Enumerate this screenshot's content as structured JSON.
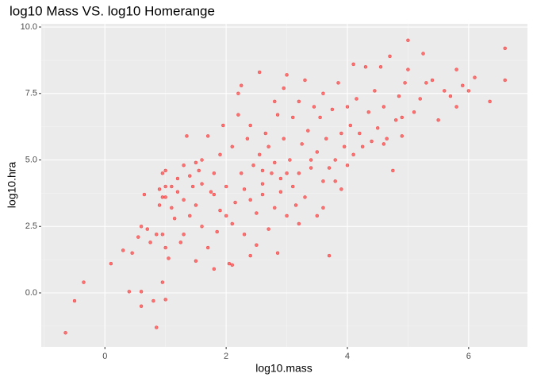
{
  "chart_data": {
    "type": "scatter",
    "title": "log10 Mass VS. log10 Homerange",
    "x_label": "log10.mass",
    "y_label": "log10.hra",
    "color": "#ff0000",
    "grid": true,
    "xlim": [
      -1.05,
      6.97
    ],
    "ylim": [
      -2.03,
      10.12
    ],
    "xticks": [
      0,
      2,
      4,
      6
    ],
    "yticks": [
      {
        "value": 0,
        "label": "0.0"
      },
      {
        "value": 2.5,
        "label": "2.5"
      },
      {
        "value": 5,
        "label": "5.0"
      },
      {
        "value": 7.5,
        "label": "7.5"
      },
      {
        "value": 10,
        "label": "10.0"
      }
    ],
    "x": [
      -0.65,
      -0.5,
      -0.35,
      0.1,
      0.4,
      0.6,
      0.6,
      0.8,
      0.85,
      0.95,
      1.0,
      0.3,
      0.45,
      0.55,
      0.6,
      0.7,
      0.65,
      0.75,
      0.85,
      0.95,
      1.0,
      1.05,
      0.9,
      0.9,
      0.95,
      1.0,
      1.0,
      1.1,
      1.1,
      1.15,
      1.2,
      1.25,
      1.3,
      1.3,
      1.35,
      1.4,
      1.45,
      1.5,
      1.5,
      1.55,
      1.6,
      1.6,
      1.7,
      1.7,
      1.75,
      1.8,
      1.8,
      1.85,
      1.9,
      1.9,
      1.95,
      2.0,
      2.0,
      2.05,
      2.1,
      2.1,
      2.15,
      2.2,
      2.2,
      2.25,
      2.25,
      2.3,
      2.35,
      2.4,
      2.4,
      2.45,
      2.5,
      2.5,
      2.55,
      2.55,
      2.6,
      2.6,
      2.65,
      2.7,
      2.7,
      2.75,
      2.8,
      2.8,
      2.85,
      2.85,
      2.9,
      2.95,
      2.95,
      3.0,
      3.0,
      3.05,
      3.1,
      3.1,
      3.15,
      3.2,
      3.2,
      3.25,
      3.3,
      3.3,
      3.35,
      3.4,
      3.45,
      3.5,
      3.5,
      3.55,
      3.6,
      3.6,
      3.65,
      3.7,
      3.7,
      3.75,
      3.8,
      3.8,
      3.85,
      3.9,
      3.9,
      3.95,
      4.0,
      4.0,
      4.05,
      4.1,
      4.1,
      4.15,
      4.2,
      4.25,
      4.3,
      4.35,
      4.4,
      4.45,
      4.5,
      4.55,
      4.6,
      4.65,
      4.7,
      4.75,
      4.8,
      4.85,
      4.9,
      4.95,
      5.0,
      5.0,
      5.1,
      5.2,
      5.25,
      5.3,
      5.4,
      5.5,
      5.6,
      5.7,
      5.8,
      5.8,
      5.9,
      6.0,
      6.1,
      6.35,
      6.6,
      6.6,
      1.2,
      1.4,
      1.6,
      1.0,
      0.95,
      2.3,
      2.6,
      2.8,
      3.0,
      3.4,
      2.9,
      1.5,
      1.8,
      2.1,
      3.6,
      4.9,
      4.6,
      1.3,
      3.2,
      2.4
    ],
    "y": [
      -1.5,
      -0.3,
      0.4,
      1.1,
      0.05,
      0.05,
      -0.5,
      -0.3,
      -1.3,
      0.4,
      -0.25,
      1.6,
      1.5,
      2.1,
      2.5,
      2.4,
      3.7,
      1.9,
      2.2,
      2.2,
      1.7,
      1.3,
      3.3,
      3.9,
      4.5,
      3.6,
      4.6,
      4.0,
      3.2,
      2.8,
      4.3,
      1.9,
      3.5,
      4.8,
      5.9,
      2.9,
      4.0,
      1.2,
      3.3,
      4.6,
      5.0,
      2.5,
      5.9,
      1.7,
      3.8,
      4.5,
      0.9,
      2.3,
      5.2,
      3.1,
      6.3,
      4.0,
      2.9,
      1.1,
      5.5,
      1.05,
      3.4,
      6.7,
      7.5,
      7.8,
      4.5,
      2.2,
      5.8,
      3.5,
      6.3,
      4.8,
      1.8,
      3.0,
      5.2,
      8.3,
      4.1,
      3.7,
      6.0,
      2.4,
      5.5,
      4.5,
      7.2,
      3.2,
      6.7,
      1.5,
      4.3,
      5.8,
      7.7,
      2.9,
      8.2,
      5.0,
      4.0,
      6.6,
      3.3,
      4.5,
      7.2,
      5.6,
      8.0,
      3.6,
      6.1,
      4.7,
      7.0,
      5.3,
      2.9,
      6.6,
      4.2,
      7.5,
      5.8,
      4.7,
      1.4,
      6.9,
      5.0,
      4.2,
      7.9,
      6.0,
      3.9,
      5.5,
      7.0,
      4.8,
      6.3,
      8.6,
      5.2,
      7.3,
      6.0,
      5.5,
      8.5,
      6.8,
      5.7,
      7.6,
      6.2,
      8.5,
      7.0,
      5.8,
      8.9,
      4.6,
      6.5,
      7.4,
      5.9,
      7.9,
      9.5,
      8.4,
      6.8,
      7.3,
      9.0,
      7.9,
      8.0,
      6.5,
      7.6,
      7.4,
      8.4,
      7.0,
      7.8,
      7.6,
      8.1,
      7.2,
      9.2,
      8.0,
      3.8,
      4.4,
      4.1,
      4.0,
      3.6,
      3.9,
      4.6,
      4.9,
      4.5,
      5.0,
      3.8,
      4.9,
      3.7,
      2.6,
      3.2,
      6.6,
      5.6,
      2.2,
      2.6,
      1.4
    ]
  }
}
